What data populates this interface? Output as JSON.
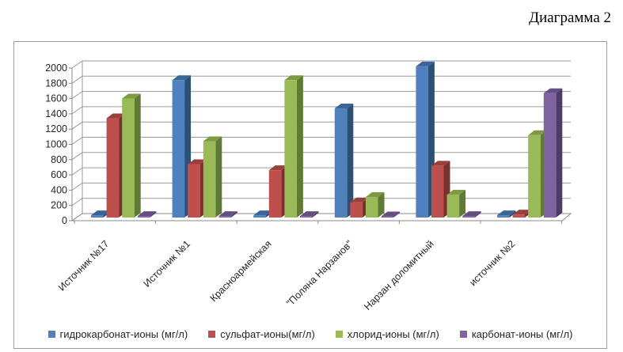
{
  "title": "Диаграмма 2",
  "chart_data": {
    "type": "bar",
    "style": "3d-clustered-column",
    "title": "Диаграмма 2",
    "categories": [
      "Источник №17",
      "Источник №1",
      "Красноармейская",
      "\"Поляна Нарзанов\"",
      "Нарзан доломитный",
      "источник №2"
    ],
    "series": [
      {
        "name": "гидрокарбонат-ионы (мг/л)",
        "color": "#4E81BD",
        "top_color": "#3A659A",
        "side_color": "#2E5075",
        "values": [
          30,
          1800,
          30,
          1430,
          1980,
          30
        ]
      },
      {
        "name": "сульфат-ионы(мг/л)",
        "color": "#BF4F4C",
        "top_color": "#993F3C",
        "side_color": "#7A302E",
        "values": [
          1300,
          700,
          620,
          200,
          680,
          40
        ]
      },
      {
        "name": "хлорид-ионы (мг/л)",
        "color": "#9ABA58",
        "top_color": "#7C9A42",
        "side_color": "#5F7A33",
        "values": [
          1560,
          1000,
          1800,
          270,
          300,
          1080
        ]
      },
      {
        "name": "карбонат-ионы (мг/л)",
        "color": "#8063A1",
        "top_color": "#664E83",
        "side_color": "#4E3B66",
        "values": [
          20,
          20,
          20,
          15,
          20,
          1630
        ]
      }
    ],
    "ylabel": "",
    "xlabel": "",
    "ylim": [
      0,
      2000
    ],
    "ytick_step": 200,
    "y_tick_labels": [
      "0",
      "200",
      "400",
      "600",
      "800",
      "1000",
      "1200",
      "1400",
      "1600",
      "1800",
      "2000"
    ],
    "grid": true,
    "legend_position": "bottom",
    "axis_color": "#8a8a8a",
    "gridline_color": "#9a9a9a"
  }
}
